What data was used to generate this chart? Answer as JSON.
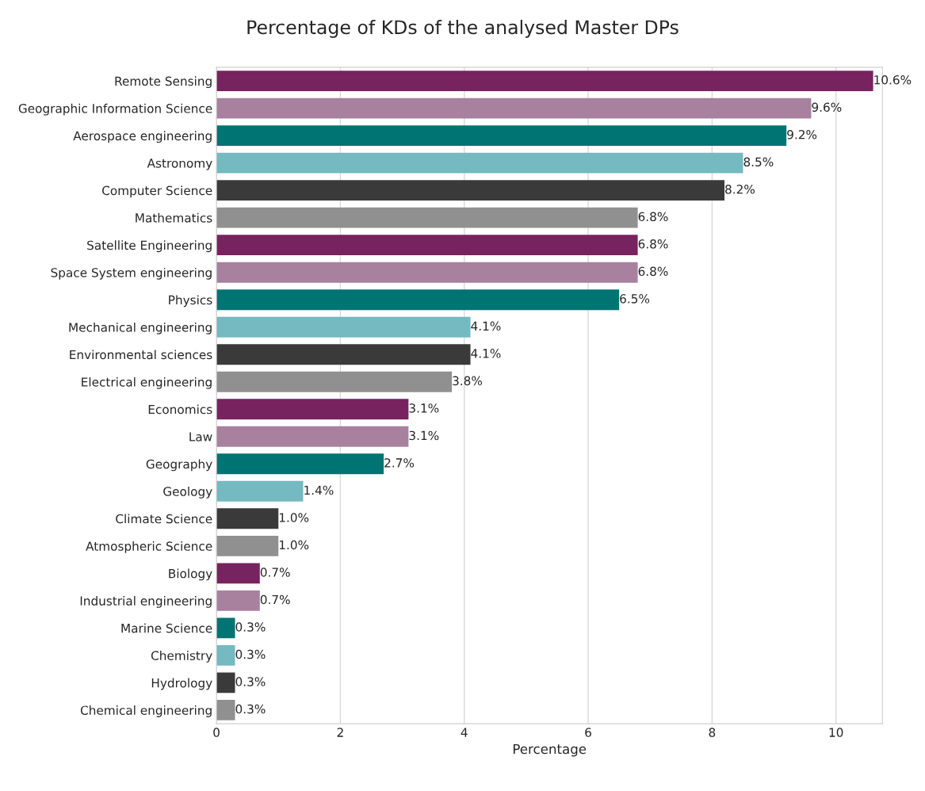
{
  "chart_data": {
    "type": "bar",
    "orientation": "horizontal",
    "title": "Percentage of KDs of the analysed Master DPs",
    "xlabel": "Percentage",
    "categories": [
      "Remote Sensing",
      "Geographic Information Science",
      "Aerospace engineering",
      "Astronomy",
      "Computer Science",
      "Mathematics",
      "Satellite Engineering",
      "Space System engineering",
      "Physics",
      "Mechanical engineering",
      "Environmental sciences",
      "Electrical engineering",
      "Economics",
      "Law",
      "Geography",
      "Geology",
      "Climate Science",
      "Atmospheric Science",
      "Biology",
      "Industrial engineering",
      "Marine Science",
      "Chemistry",
      "Hydrology",
      "Chemical engineering"
    ],
    "values": [
      10.6,
      9.6,
      9.2,
      8.5,
      8.2,
      6.8,
      6.8,
      6.8,
      6.5,
      4.1,
      4.1,
      3.8,
      3.1,
      3.1,
      2.7,
      1.4,
      1.0,
      1.0,
      0.7,
      0.7,
      0.3,
      0.3,
      0.3,
      0.3
    ],
    "value_labels": [
      "10.6%",
      "9.6%",
      "9.2%",
      "8.5%",
      "8.2%",
      "6.8%",
      "6.8%",
      "6.8%",
      "6.5%",
      "4.1%",
      "4.1%",
      "3.8%",
      "3.1%",
      "3.1%",
      "2.7%",
      "1.4%",
      "1.0%",
      "1.0%",
      "0.7%",
      "0.7%",
      "0.3%",
      "0.3%",
      "0.3%",
      "0.3%"
    ],
    "colors": [
      "#77235f",
      "#a8819e",
      "#007473",
      "#75b9c1",
      "#3a3a3a",
      "#909090",
      "#77235f",
      "#a8819e",
      "#007473",
      "#75b9c1",
      "#3a3a3a",
      "#909090",
      "#77235f",
      "#a8819e",
      "#007473",
      "#75b9c1",
      "#3a3a3a",
      "#909090",
      "#77235f",
      "#a8819e",
      "#007473",
      "#75b9c1",
      "#3a3a3a",
      "#909090"
    ],
    "xlim": [
      0,
      10.75
    ],
    "xticks": [
      0,
      2,
      4,
      6,
      8,
      10
    ],
    "grid": "x"
  }
}
